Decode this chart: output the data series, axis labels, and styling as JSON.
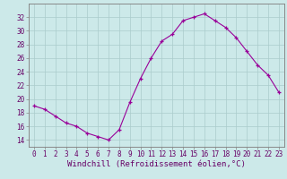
{
  "x": [
    0,
    1,
    2,
    3,
    4,
    5,
    6,
    7,
    8,
    9,
    10,
    11,
    12,
    13,
    14,
    15,
    16,
    17,
    18,
    19,
    20,
    21,
    22,
    23
  ],
  "y": [
    19.0,
    18.5,
    17.5,
    16.5,
    16.0,
    15.0,
    14.5,
    14.0,
    15.5,
    19.5,
    23.0,
    26.0,
    28.5,
    29.5,
    31.5,
    32.0,
    32.5,
    31.5,
    30.5,
    29.0,
    27.0,
    25.0,
    23.5,
    21.0
  ],
  "line_color": "#990099",
  "marker": "+",
  "marker_size": 3,
  "xlabel": "Windchill (Refroidissement éolien,°C)",
  "xlim": [
    -0.5,
    23.5
  ],
  "ylim": [
    13,
    34
  ],
  "yticks": [
    14,
    16,
    18,
    20,
    22,
    24,
    26,
    28,
    30,
    32
  ],
  "xticks": [
    0,
    1,
    2,
    3,
    4,
    5,
    6,
    7,
    8,
    9,
    10,
    11,
    12,
    13,
    14,
    15,
    16,
    17,
    18,
    19,
    20,
    21,
    22,
    23
  ],
  "background_color": "#cce9e9",
  "grid_color": "#aacccc",
  "tick_label_color": "#660066",
  "tick_label_size": 5.5,
  "xlabel_size": 6.5,
  "xlabel_color": "#660066",
  "spine_color": "#888888"
}
